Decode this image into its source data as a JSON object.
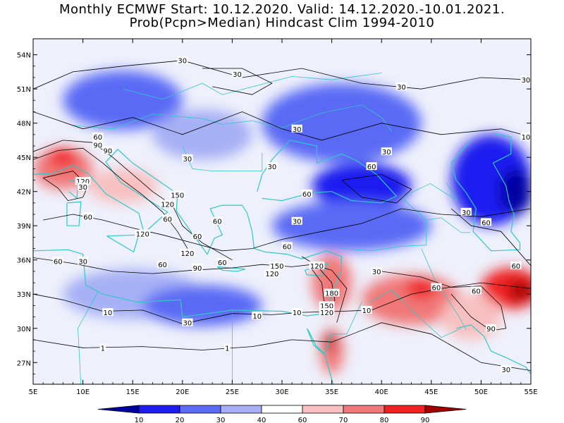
{
  "title": {
    "line1": "Monthly ECMWF Start: 10.12.2020. Valid: 14.12.2020.-10.01.2021.",
    "line2": "Prob(Pcpn>Median) Hindcast Clim 1994-2010"
  },
  "map": {
    "lon_labels": [
      "5E",
      "10E",
      "15E",
      "20E",
      "25E",
      "30E",
      "35E",
      "40E",
      "45E",
      "50E",
      "55E"
    ],
    "lat_labels": [
      "54N",
      "51N",
      "48N",
      "45N",
      "42N",
      "39N",
      "36N",
      "33N",
      "30N",
      "27N"
    ],
    "lon_values": [
      5,
      10,
      15,
      20,
      25,
      30,
      35,
      40,
      45,
      50,
      55
    ],
    "lat_values": [
      54,
      51,
      48,
      45,
      42,
      39,
      36,
      33,
      30,
      27
    ],
    "extent": {
      "lon_min": 5,
      "lon_max": 55,
      "lat_min": 25.1,
      "lat_max": 55.4
    },
    "coastline_color": "#30c8c8",
    "contour_color": "#000000"
  },
  "colorbar": {
    "labels": [
      "10",
      "20",
      "30",
      "40",
      "60",
      "70",
      "80",
      "90"
    ],
    "colors": [
      "#0000a0",
      "#1c1cf0",
      "#5a6af5",
      "#a6b0f5",
      "#ffffff",
      "#f8c0c0",
      "#f07878",
      "#f02020",
      "#a00000"
    ]
  },
  "regions": [
    {
      "label": "central-europe-dry",
      "lon": 14,
      "lat": 50,
      "rx": 6,
      "ry": 2.6,
      "color": "#5a6af5"
    },
    {
      "label": "balkan-dry",
      "lon": 22,
      "lat": 47,
      "rx": 5,
      "ry": 2.2,
      "color": "#a6b0f5"
    },
    {
      "label": "ukraine-dry",
      "lon": 36,
      "lat": 48,
      "rx": 8,
      "ry": 3.5,
      "color": "#5a6af5"
    },
    {
      "label": "black-sea-dry",
      "lon": 38,
      "lat": 42.5,
      "rx": 5,
      "ry": 2,
      "color": "#1c1cf0"
    },
    {
      "label": "caspian-dry",
      "lon": 51,
      "lat": 43,
      "rx": 4,
      "ry": 4,
      "color": "#1c1cf0"
    },
    {
      "label": "caspian-core",
      "lon": 53.5,
      "lat": 42,
      "rx": 1.6,
      "ry": 2,
      "color": "#0000a0"
    },
    {
      "label": "anatolia-dry",
      "lon": 37,
      "lat": 39,
      "rx": 8,
      "ry": 2.2,
      "color": "#5a6af5"
    },
    {
      "label": "africa-dry",
      "lon": 15,
      "lat": 33,
      "rx": 7,
      "ry": 2.2,
      "color": "#a6b0f5"
    },
    {
      "label": "libya-dry",
      "lon": 22,
      "lat": 32,
      "rx": 6,
      "ry": 1.8,
      "color": "#5a6af5"
    },
    {
      "label": "italy-alps-wet",
      "lon": 8,
      "lat": 44,
      "rx": 3,
      "ry": 1.8,
      "color": "#f07878"
    },
    {
      "label": "alps-core",
      "lon": 8,
      "lat": 45,
      "rx": 1.5,
      "ry": 0.8,
      "color": "#f02020"
    },
    {
      "label": "adriatic-wet",
      "lon": 14,
      "lat": 42.5,
      "rx": 3.5,
      "ry": 1.5,
      "color": "#f8c0c0"
    },
    {
      "label": "levant-wet",
      "lon": 35,
      "lat": 34,
      "rx": 2,
      "ry": 2.5,
      "color": "#f07878"
    },
    {
      "label": "iraq-wet",
      "lon": 43,
      "lat": 32.5,
      "rx": 5,
      "ry": 2.2,
      "color": "#f07878"
    },
    {
      "label": "iraq-core",
      "lon": 44,
      "lat": 33.5,
      "rx": 1.6,
      "ry": 0.9,
      "color": "#f02020"
    },
    {
      "label": "zagros-wet",
      "lon": 53,
      "lat": 33.5,
      "rx": 3,
      "ry": 1.8,
      "color": "#f02020"
    },
    {
      "label": "zagros-core",
      "lon": 54,
      "lat": 33.3,
      "rx": 1.2,
      "ry": 0.9,
      "color": "#a00000"
    },
    {
      "label": "sinai-wet",
      "lon": 35,
      "lat": 28,
      "rx": 1.2,
      "ry": 2,
      "color": "#f07878"
    },
    {
      "label": "sinai-core",
      "lon": 34.8,
      "lat": 28.8,
      "rx": 0.5,
      "ry": 0.8,
      "color": "#a00000"
    },
    {
      "label": "iran-wet",
      "lon": 49,
      "lat": 31,
      "rx": 3,
      "ry": 2,
      "color": "#f8c0c0"
    }
  ],
  "contour_labels": [
    {
      "text": "30",
      "lon": 20,
      "lat": 53.5
    },
    {
      "text": "30",
      "lon": 25.5,
      "lat": 52.3
    },
    {
      "text": "30",
      "lon": 42,
      "lat": 51.2
    },
    {
      "text": "30",
      "lon": 54.5,
      "lat": 51.8
    },
    {
      "text": "30",
      "lon": 31.5,
      "lat": 47.5
    },
    {
      "text": "10",
      "lon": 54.5,
      "lat": 46.8
    },
    {
      "text": "60",
      "lon": 11.5,
      "lat": 46.8
    },
    {
      "text": "90",
      "lon": 11.5,
      "lat": 46.1
    },
    {
      "text": "90",
      "lon": 12.5,
      "lat": 45.6
    },
    {
      "text": "30",
      "lon": 20.5,
      "lat": 44.9
    },
    {
      "text": "30",
      "lon": 40.5,
      "lat": 45.5
    },
    {
      "text": "60",
      "lon": 39,
      "lat": 44.2
    },
    {
      "text": "30",
      "lon": 29,
      "lat": 44.2
    },
    {
      "text": "120",
      "lon": 10,
      "lat": 42.9
    },
    {
      "text": "30",
      "lon": 10,
      "lat": 42.4
    },
    {
      "text": "60",
      "lon": 32.5,
      "lat": 41.8
    },
    {
      "text": "150",
      "lon": 19.5,
      "lat": 41.7
    },
    {
      "text": "120",
      "lon": 18.5,
      "lat": 40.9
    },
    {
      "text": "60",
      "lon": 10.5,
      "lat": 39.8
    },
    {
      "text": "60",
      "lon": 18.5,
      "lat": 39.6
    },
    {
      "text": "30",
      "lon": 48.5,
      "lat": 40.2
    },
    {
      "text": "60",
      "lon": 23.5,
      "lat": 39.4
    },
    {
      "text": "30",
      "lon": 31.5,
      "lat": 39.4
    },
    {
      "text": "60",
      "lon": 50.5,
      "lat": 39.3
    },
    {
      "text": "120",
      "lon": 16,
      "lat": 38.3
    },
    {
      "text": "60",
      "lon": 21.5,
      "lat": 38.1
    },
    {
      "text": "60",
      "lon": 30.5,
      "lat": 37.2
    },
    {
      "text": "120",
      "lon": 20.5,
      "lat": 36.6
    },
    {
      "text": "60",
      "lon": 7.5,
      "lat": 35.9
    },
    {
      "text": "30",
      "lon": 10,
      "lat": 35.9
    },
    {
      "text": "60",
      "lon": 18,
      "lat": 35.6
    },
    {
      "text": "60",
      "lon": 24,
      "lat": 35.8
    },
    {
      "text": "150",
      "lon": 29.5,
      "lat": 35.5
    },
    {
      "text": "120",
      "lon": 33.5,
      "lat": 35.5
    },
    {
      "text": "90",
      "lon": 21.5,
      "lat": 35.3
    },
    {
      "text": "120",
      "lon": 29,
      "lat": 34.8
    },
    {
      "text": "60",
      "lon": 53.5,
      "lat": 35.5
    },
    {
      "text": "30",
      "lon": 39.5,
      "lat": 35.0
    },
    {
      "text": "60",
      "lon": 45.5,
      "lat": 33.6
    },
    {
      "text": "60",
      "lon": 49.5,
      "lat": 33.3
    },
    {
      "text": "180",
      "lon": 35,
      "lat": 33.1
    },
    {
      "text": "150",
      "lon": 34.5,
      "lat": 32.0
    },
    {
      "text": "120",
      "lon": 34.5,
      "lat": 31.4
    },
    {
      "text": "10",
      "lon": 12.5,
      "lat": 31.4
    },
    {
      "text": "10",
      "lon": 31.5,
      "lat": 31.4
    },
    {
      "text": "10",
      "lon": 38.5,
      "lat": 31.6
    },
    {
      "text": "10",
      "lon": 27.5,
      "lat": 31.1
    },
    {
      "text": "90",
      "lon": 51,
      "lat": 30.0
    },
    {
      "text": "30",
      "lon": 20.5,
      "lat": 30.5
    },
    {
      "text": "1",
      "lon": 12,
      "lat": 28.3
    },
    {
      "text": "1",
      "lon": 24.5,
      "lat": 28.3
    },
    {
      "text": "30",
      "lon": 52.5,
      "lat": 26.4
    }
  ]
}
